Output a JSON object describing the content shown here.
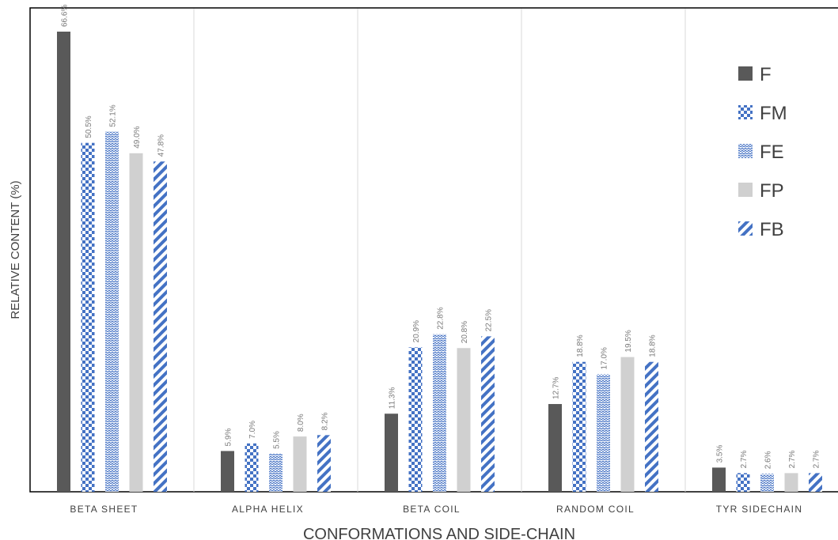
{
  "chart_data": {
    "type": "bar",
    "xlabel": "CONFORMATIONS AND SIDE-CHAIN",
    "ylabel": "RELATIVE CONTENT (%)",
    "ylim": [
      0,
      70
    ],
    "grid": "vertical separators only",
    "legend_position": "top-right",
    "categories": [
      "BETA SHEET",
      "ALPHA HELIX",
      "BETA COIL",
      "RANDOM COIL",
      "TYR SIDECHAIN"
    ],
    "series": [
      {
        "name": "F",
        "pattern": "solid",
        "color": "#595959",
        "values": [
          66.6,
          5.9,
          11.3,
          12.7,
          3.5
        ],
        "labels": [
          "66.6%",
          "5.9%",
          "11.3%",
          "12.7%",
          "3.5%"
        ]
      },
      {
        "name": "FM",
        "pattern": "checkerboard",
        "color": "#4472c4",
        "values": [
          50.5,
          7.0,
          20.9,
          18.8,
          2.7
        ],
        "labels": [
          "50.5%",
          "7.0%",
          "20.9%",
          "18.8%",
          "2.7%"
        ]
      },
      {
        "name": "FE",
        "pattern": "zigzag",
        "color": "#4472c4",
        "values": [
          52.1,
          5.5,
          22.8,
          17.0,
          2.6
        ],
        "labels": [
          "52.1%",
          "5.5%",
          "22.8%",
          "17.0%",
          "2.6%"
        ]
      },
      {
        "name": "FP",
        "pattern": "solid",
        "color": "#d0d0d0",
        "values": [
          49.0,
          8.0,
          20.8,
          19.5,
          2.7
        ],
        "labels": [
          "49.0%",
          "8.0%",
          "20.8%",
          "19.5%",
          "2.7%"
        ]
      },
      {
        "name": "FB",
        "pattern": "diagonal",
        "color": "#4472c4",
        "values": [
          47.8,
          8.2,
          22.5,
          18.8,
          2.7
        ],
        "labels": [
          "47.8%",
          "8.2%",
          "22.5%",
          "18.8%",
          "2.7%"
        ]
      }
    ]
  }
}
